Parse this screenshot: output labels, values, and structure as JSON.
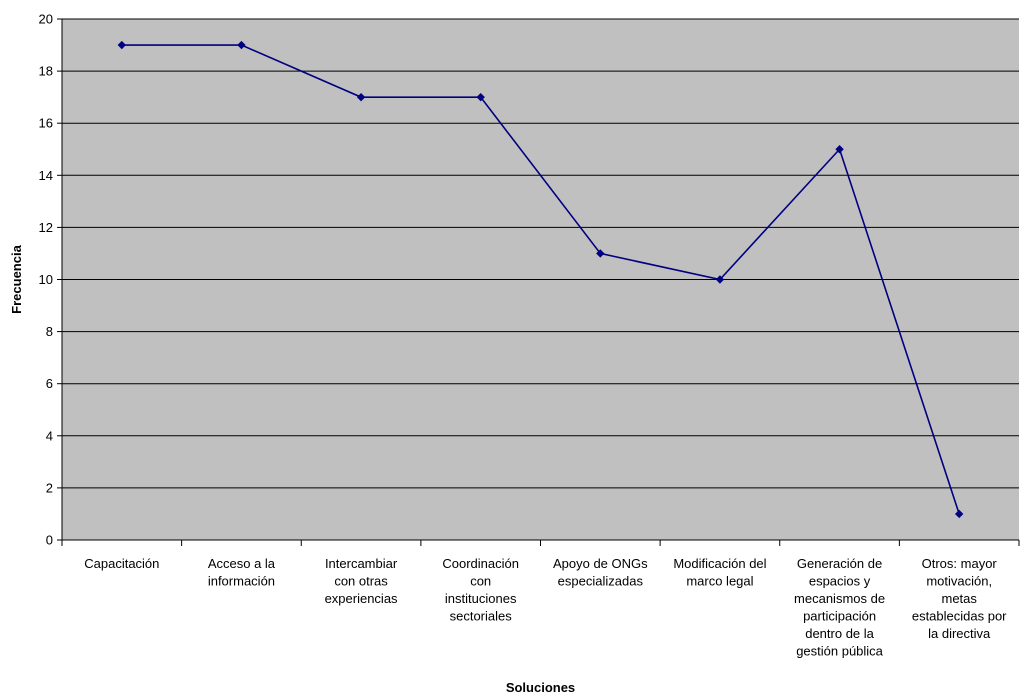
{
  "chart_data": {
    "type": "line",
    "title": "",
    "xlabel": "Soluciones",
    "ylabel": "Frecuencia",
    "ylim": [
      0,
      20
    ],
    "ytick_step": 2,
    "grid": true,
    "legend": "none",
    "categories": [
      "Capacitación",
      "Acceso a la información",
      "Intercambiar con otras experiencias",
      "Coordinación con instituciones sectoriales",
      "Apoyo de ONGs especializadas",
      "Modificación del marco legal",
      "Generación de espacios y mecanismos de participación dentro de la gestión pública",
      "Otros: mayor motivación, metas establecidas por la directiva"
    ],
    "category_lines": [
      [
        "Capacitación"
      ],
      [
        "Acceso a la",
        "información"
      ],
      [
        "Intercambiar",
        "con otras",
        "experiencias"
      ],
      [
        "Coordinación",
        "con",
        "instituciones",
        "sectoriales"
      ],
      [
        "Apoyo de ONGs",
        "especializadas"
      ],
      [
        "Modificación del",
        "marco legal"
      ],
      [
        "Generación de",
        "espacios y",
        "mecanismos de",
        "participación",
        "dentro de la",
        "gestión pública"
      ],
      [
        "Otros: mayor",
        "motivación,",
        "metas",
        "establecidas por",
        "la directiva"
      ]
    ],
    "series": [
      {
        "values": [
          19,
          19,
          17,
          17,
          11,
          10,
          15,
          1
        ]
      }
    ],
    "colors": {
      "plot_background": "#c0c0c0",
      "line": "#000080",
      "marker": "#000080",
      "gridline": "#000000"
    }
  }
}
